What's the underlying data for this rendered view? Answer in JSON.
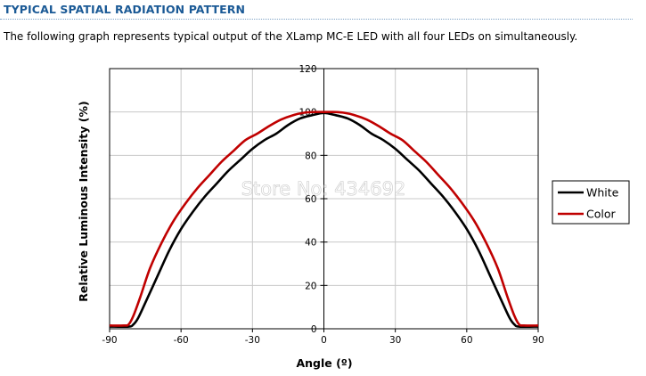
{
  "heading": "TYPICAL SPATIAL RADIATION PATTERN",
  "intro": "The following graph represents typical output of the XLamp MC-E LED with all four LEDs on simultaneously.",
  "watermark": "Store No: 434692",
  "chart_data": {
    "type": "line",
    "title": "",
    "xlabel": "Angle (º)",
    "ylabel": "Relative Luminous Intensity (%)",
    "xlim": [
      -90,
      90
    ],
    "ylim": [
      0,
      120
    ],
    "xticks": [
      -90,
      -60,
      -30,
      0,
      30,
      60,
      90
    ],
    "yticks": [
      0,
      20,
      40,
      60,
      80,
      100,
      120
    ],
    "grid": true,
    "legend_position": "right",
    "series": [
      {
        "name": "White",
        "color": "#000000",
        "x": [
          -90,
          -82,
          -80,
          -78,
          -75,
          -70,
          -65,
          -60,
          -55,
          -50,
          -45,
          -40,
          -35,
          -30,
          -25,
          -20,
          -15,
          -10,
          -5,
          0,
          5,
          10,
          15,
          20,
          25,
          30,
          35,
          40,
          45,
          50,
          55,
          60,
          65,
          70,
          75,
          78,
          80,
          82,
          90
        ],
        "y": [
          1,
          1,
          2,
          5,
          12,
          24,
          36,
          46,
          54,
          61,
          67,
          73,
          78,
          83,
          87,
          90,
          94,
          97,
          98.5,
          99.5,
          98.5,
          97,
          94,
          90,
          87,
          83,
          78,
          73,
          67,
          61,
          54,
          46,
          36,
          24,
          12,
          5,
          2,
          1,
          1
        ]
      },
      {
        "name": "Color",
        "color": "#c00000",
        "x": [
          -90,
          -84,
          -82,
          -80,
          -77,
          -73,
          -68,
          -63,
          -58,
          -53,
          -48,
          -43,
          -38,
          -33,
          -28,
          -23,
          -18,
          -13,
          -8,
          -3,
          0,
          3,
          8,
          13,
          18,
          23,
          28,
          33,
          38,
          43,
          48,
          53,
          58,
          63,
          68,
          73,
          77,
          80,
          82,
          84,
          90
        ],
        "y": [
          1.5,
          1.5,
          2,
          6,
          15,
          28,
          40,
          50,
          58,
          65,
          71,
          77,
          82,
          87,
          90,
          93.5,
          96.5,
          98.5,
          99.7,
          100,
          100,
          100,
          99.7,
          98.5,
          96.5,
          93.5,
          90,
          87,
          82,
          77,
          71,
          65,
          58,
          50,
          40,
          28,
          15,
          6,
          2,
          1.5,
          1.5
        ]
      }
    ]
  }
}
